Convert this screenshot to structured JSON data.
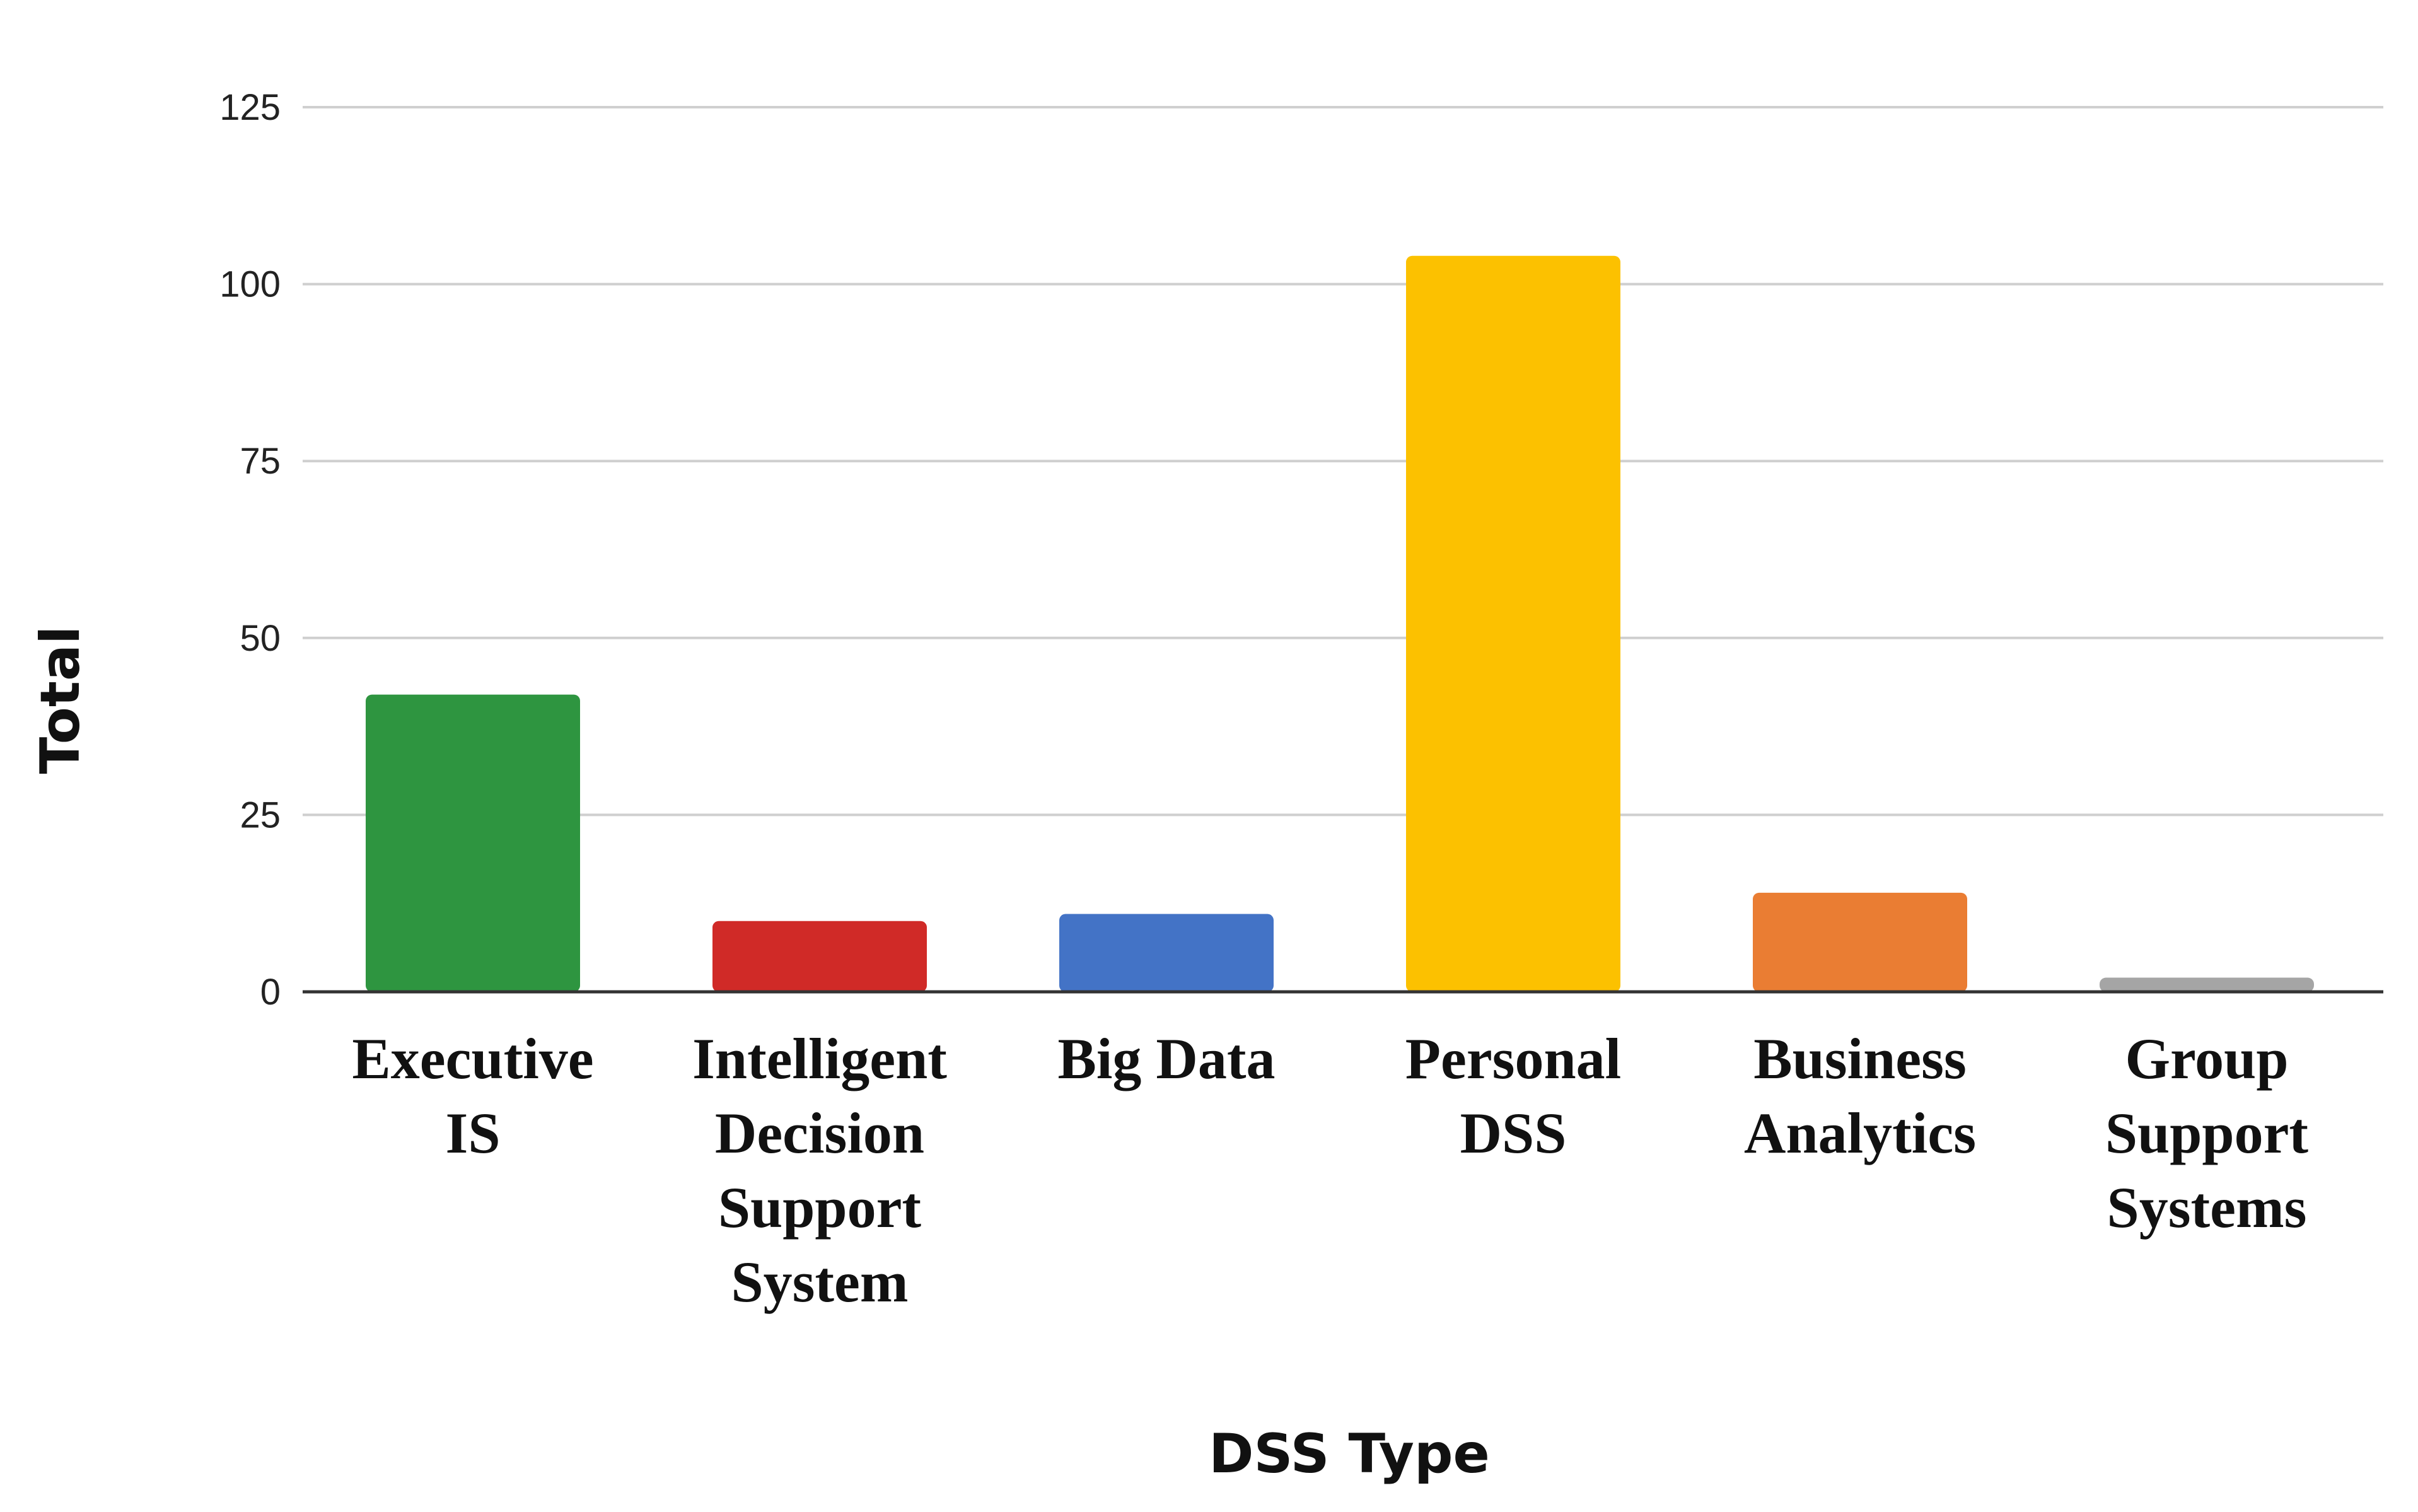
{
  "chart_data": {
    "type": "bar",
    "categories": [
      [
        "Executive",
        "IS"
      ],
      [
        "Intelligent",
        "Decision",
        "Support",
        "System"
      ],
      [
        "Big Data"
      ],
      [
        "Personal",
        "DSS"
      ],
      [
        "Business",
        "Analytics"
      ],
      [
        "Group",
        "Support",
        "Systems"
      ]
    ],
    "values": [
      42,
      10,
      11,
      104,
      14,
      2
    ],
    "colors": [
      "#2e9540",
      "#d02a27",
      "#4373c6",
      "#fcc100",
      "#ea7d33",
      "#a5a5a5"
    ],
    "xlabel": "DSS Type",
    "ylabel": "Total",
    "ylim": [
      0,
      125
    ],
    "yticks": [
      0,
      25,
      50,
      75,
      100,
      125
    ],
    "grid": true,
    "legend": "none"
  }
}
